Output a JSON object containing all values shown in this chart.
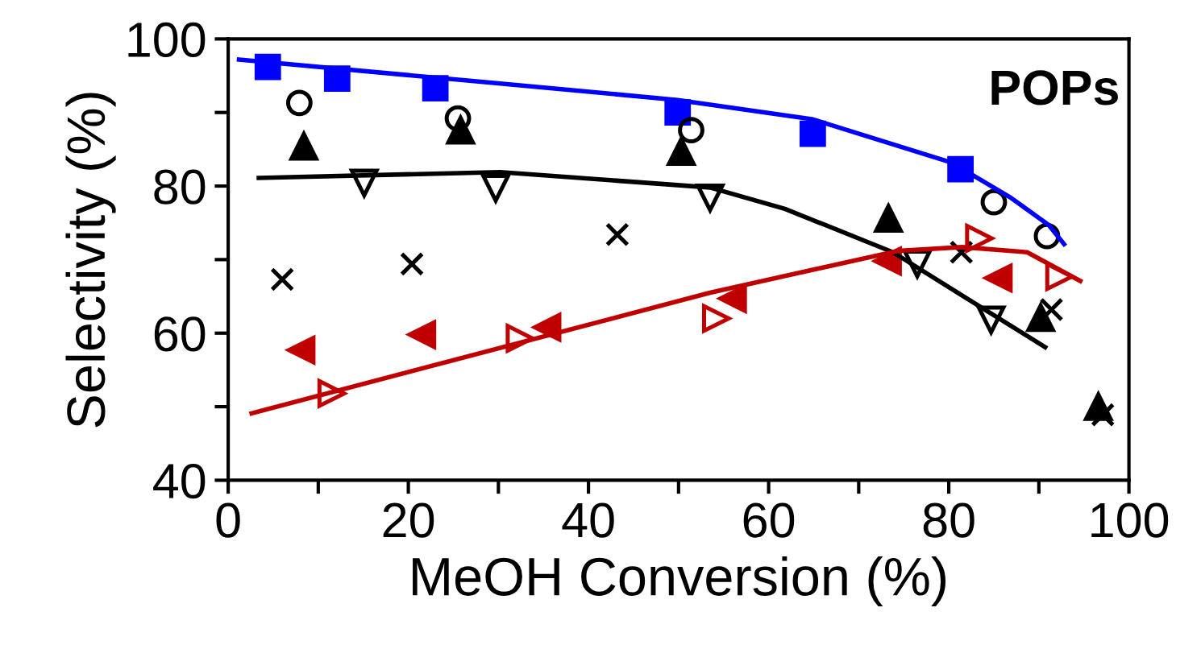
{
  "chart_data": {
    "type": "scatter",
    "xlabel": "MeOH Conversion (%)",
    "ylabel": "Selectivity (%)",
    "annotations": [
      "POPs"
    ],
    "xlim": [
      0,
      100
    ],
    "ylim": [
      40,
      100
    ],
    "xticks": [
      0,
      {
        "value": 10,
        "label": null
      },
      20,
      {
        "value": 30,
        "label": null
      },
      40,
      {
        "value": 50,
        "label": null
      },
      60,
      {
        "value": 70,
        "label": null
      },
      80,
      {
        "value": 90,
        "label": null
      },
      100
    ],
    "yticks": [
      40,
      {
        "value": 50,
        "label": null
      },
      60,
      {
        "value": 70,
        "label": null
      },
      80,
      {
        "value": 90,
        "label": null
      },
      100
    ],
    "grid": false,
    "legend": false,
    "series": [
      {
        "marker": "square",
        "color": "#0000ff",
        "x": [
          4.4,
          12.1,
          23.0,
          49.9,
          64.9,
          81.3
        ],
        "values": [
          96.2,
          94.6,
          93.3,
          90.0,
          87.1,
          82.3
        ]
      },
      {
        "marker": "circle_open",
        "color": "#000000",
        "x": [
          7.9,
          25.5,
          51.4,
          85.0,
          90.9
        ],
        "values": [
          91.3,
          89.2,
          87.6,
          77.8,
          73.2
        ]
      },
      {
        "marker": "triangle",
        "color": "#000000",
        "x": [
          8.4,
          25.8,
          50.3,
          73.3,
          90.2,
          96.6
        ],
        "values": [
          85.4,
          87.6,
          84.7,
          75.6,
          62.1,
          50.0
        ]
      },
      {
        "marker": "triangle_down_open",
        "color": "#000000",
        "x": [
          15.1,
          29.7,
          53.5,
          76.5,
          84.7
        ],
        "values": [
          80.4,
          79.7,
          78.4,
          69.4,
          61.8
        ]
      },
      {
        "marker": "cross",
        "color": "#000000",
        "x": [
          6.0,
          20.4,
          43.2,
          81.4,
          91.4,
          97.1
        ],
        "values": [
          67.3,
          69.4,
          73.4,
          71.0,
          63.2,
          48.9
        ]
      },
      {
        "marker": "triangle_left",
        "color": "#c00000",
        "x": [
          8.1,
          21.5,
          35.4,
          56.0,
          73.2,
          85.5
        ],
        "values": [
          57.7,
          59.8,
          60.8,
          64.7,
          69.8,
          67.5
        ]
      },
      {
        "marker": "triangle_right_open",
        "color": "#c00000",
        "x": [
          11.5,
          32.4,
          54.2,
          83.4,
          92.3
        ],
        "values": [
          51.8,
          59.3,
          62.0,
          72.9,
          67.7
        ]
      },
      {
        "type": "line",
        "color": "#0000ff",
        "x": [
          1.2,
          27.8,
          49.9,
          64.8,
          80.3,
          86.9,
          91.1,
          92.8
        ],
        "values": [
          97.2,
          94.2,
          91.7,
          89.1,
          83.2,
          78.4,
          74.7,
          72.1
        ]
      },
      {
        "type": "line",
        "color": "#000000",
        "x": [
          3.4,
          30.2,
          53.5,
          61.8,
          73.8,
          81.5,
          90.7
        ],
        "values": [
          81.1,
          81.9,
          79.8,
          76.9,
          71.0,
          65.1,
          58.1
        ]
      },
      {
        "type": "line",
        "color": "#c00000",
        "x": [
          2.6,
          53.5,
          74.4,
          81.5,
          88.7,
          94.6
        ],
        "values": [
          49.1,
          65.5,
          71.2,
          71.7,
          71.0,
          67.1
        ]
      }
    ]
  }
}
